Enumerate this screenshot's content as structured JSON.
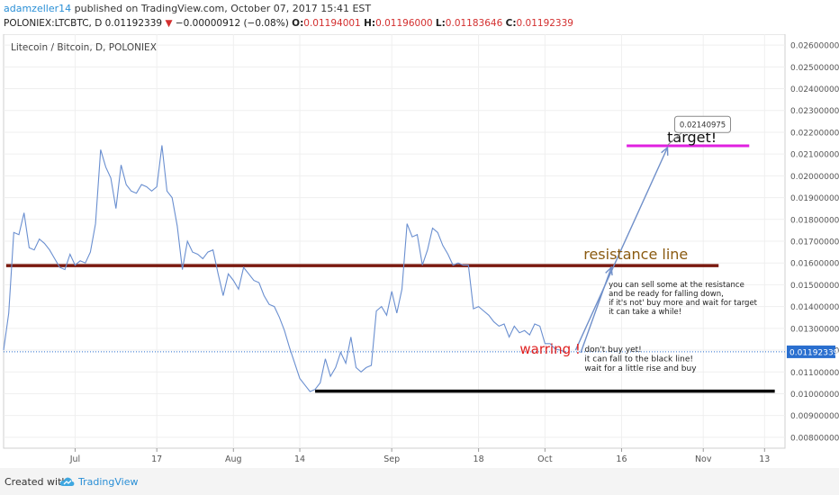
{
  "header": {
    "author": "adamzeller14",
    "published": " published on TradingView.com, October 07, 2017 15:41 EST",
    "symbol": "POLONIEX:LTCBTC, D",
    "price": "0.01192339",
    "change_arrow": "▼",
    "change": "−0.00000912 (−0.08%)",
    "o_label": "O:",
    "o_value": "0.01194001",
    "h_label": "H:",
    "h_value": "0.01196000",
    "l_label": "L:",
    "l_value": "0.01183646",
    "c_label": "C:",
    "c_value": "0.01192339"
  },
  "footer": {
    "created_with": "Created with",
    "brand": "TradingView",
    "logo_icon": "tradingview-cloud-icon"
  },
  "chart_data": {
    "type": "line",
    "title": "Litecoin / Bitcoin, D, POLONIEX",
    "y_ticks": [
      "0.02600000",
      "0.02500000",
      "0.02400000",
      "0.02300000",
      "0.02200000",
      "0.02100000",
      "0.02000000",
      "0.01900000",
      "0.01800000",
      "0.01700000",
      "0.01600000",
      "0.01500000",
      "0.01400000",
      "0.01300000",
      "0.01200000",
      "0.01100000",
      "0.01000000",
      "0.00900000",
      "0.00800000"
    ],
    "ylim": [
      0.0075,
      0.0265
    ],
    "x_ticks": [
      {
        "label": "Jul",
        "day": 14
      },
      {
        "label": "17",
        "day": 30
      },
      {
        "label": "Aug",
        "day": 45
      },
      {
        "label": "14",
        "day": 58
      },
      {
        "label": "Sep",
        "day": 76
      },
      {
        "label": "18",
        "day": 93
      },
      {
        "label": "Oct",
        "day": 106
      },
      {
        "label": "16",
        "day": 121
      },
      {
        "label": "Nov",
        "day": 137
      },
      {
        "label": "13",
        "day": 149
      }
    ],
    "xlim": [
      0,
      153
    ],
    "grid": true,
    "series": [
      {
        "x": [
          0,
          1,
          2,
          3,
          4,
          5,
          6,
          7,
          8,
          9,
          10,
          11,
          12,
          13,
          14,
          15,
          16,
          17,
          18,
          19,
          20,
          21,
          22,
          23,
          24,
          25,
          26,
          27,
          28,
          29,
          30,
          31,
          32,
          33,
          34,
          35,
          36,
          37,
          38,
          39,
          40,
          41,
          42,
          43,
          44,
          45,
          46,
          47,
          48,
          49,
          50,
          51,
          52,
          53,
          54,
          55,
          56,
          57,
          58,
          59,
          60,
          61,
          62,
          63,
          64,
          65,
          66,
          67,
          68,
          69,
          70,
          71,
          72,
          73,
          74,
          75,
          76,
          77,
          78,
          79,
          80,
          81,
          82,
          83,
          84,
          85,
          86,
          87,
          88,
          89,
          90,
          91,
          92,
          93,
          94,
          95,
          96,
          97,
          98,
          99,
          100,
          101,
          102,
          103,
          104,
          105,
          106,
          107,
          108,
          109,
          110
        ],
        "y": [
          0.012,
          0.0137,
          0.0174,
          0.0173,
          0.0183,
          0.0167,
          0.0166,
          0.0171,
          0.0169,
          0.0166,
          0.0162,
          0.0158,
          0.0157,
          0.0164,
          0.0159,
          0.0161,
          0.016,
          0.0165,
          0.0178,
          0.0212,
          0.0204,
          0.0199,
          0.0185,
          0.0205,
          0.0196,
          0.0193,
          0.0192,
          0.0196,
          0.0195,
          0.0193,
          0.0195,
          0.0214,
          0.0193,
          0.019,
          0.0177,
          0.0157,
          0.017,
          0.0165,
          0.0164,
          0.0162,
          0.0165,
          0.0166,
          0.0155,
          0.0145,
          0.0155,
          0.0152,
          0.0148,
          0.0158,
          0.0155,
          0.0152,
          0.0151,
          0.0145,
          0.0141,
          0.014,
          0.0135,
          0.0129,
          0.0121,
          0.0114,
          0.0107,
          0.0104,
          0.0101,
          0.0102,
          0.0105,
          0.0116,
          0.0108,
          0.0112,
          0.0119,
          0.0114,
          0.0126,
          0.0112,
          0.011,
          0.0112,
          0.0113,
          0.0138,
          0.014,
          0.0136,
          0.0147,
          0.0137,
          0.0148,
          0.0178,
          0.0172,
          0.0173,
          0.0159,
          0.0166,
          0.0176,
          0.0174,
          0.0168,
          0.0164,
          0.0159,
          0.016,
          0.0159,
          0.0159,
          0.0139,
          0.014,
          0.0138,
          0.0136,
          0.0133,
          0.0131,
          0.0132,
          0.0126,
          0.0131,
          0.0128,
          0.0129,
          0.0127,
          0.0132,
          0.0131,
          0.0123,
          0.0123,
          0.01205,
          0.012,
          0.01192
        ]
      }
    ],
    "last_price_label": "0.01192339",
    "annotations": {
      "resistance": {
        "text": "resistance line",
        "y": 0.01588,
        "x_start": 0.5,
        "x_end": 140
      },
      "target": {
        "text": "target!",
        "y": 0.02138,
        "x_start": 122,
        "x_end": 146
      },
      "support": {
        "y": 0.01012,
        "x_start": 61,
        "x_end": 151
      },
      "target_callout": {
        "text": "0.02140975",
        "x": 130,
        "y": 0.02140975
      },
      "warning": {
        "text": "warring !",
        "x": 112,
        "y": 0.0115
      },
      "warning_note": [
        "don't buy yet!",
        "it can fall to the black line!",
        "wait for a little rise and buy"
      ],
      "resistance_note": [
        "you can sell some at the resistance",
        "and be ready for falling down,",
        "if it's not' buy more and wait for target",
        "it can take a while!"
      ],
      "arrow1": {
        "from": [
          113,
          0.01188
        ],
        "to": [
          119,
          0.0158
        ]
      },
      "arrow2": {
        "from": [
          112,
          0.012
        ],
        "to": [
          130,
          0.0213
        ]
      }
    },
    "colors": {
      "line": "#6a8fd0",
      "resistance": "#7a1a10",
      "target": "#e020e0",
      "support": "#000000",
      "warning": "#e02020",
      "resistance_text": "#8a5a10",
      "last_price": "#2a6fcf"
    }
  }
}
